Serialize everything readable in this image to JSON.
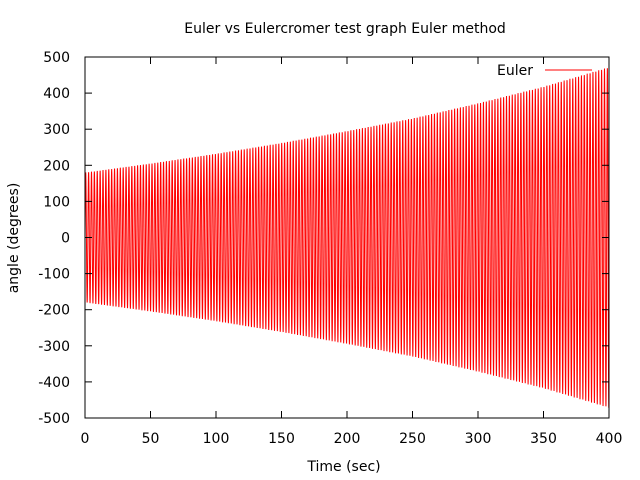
{
  "chart_data": {
    "type": "line",
    "title": "Euler vs Eulercromer test graph Euler method",
    "xlabel": "Time (sec)",
    "ylabel": "angle (degrees)",
    "xlim": [
      0,
      400
    ],
    "ylim": [
      -500,
      500
    ],
    "xticks": [
      0,
      50,
      100,
      150,
      200,
      250,
      300,
      350,
      400
    ],
    "yticks": [
      -500,
      -400,
      -300,
      -200,
      -100,
      0,
      100,
      200,
      300,
      400,
      500
    ],
    "grid": false,
    "legend_position": "top-right",
    "series": [
      {
        "name": "Euler",
        "color": "#ff0000",
        "description": "oscillation with exponentially growing amplitude",
        "envelope": {
          "x": [
            0,
            50,
            100,
            150,
            200,
            250,
            300,
            350,
            400
          ],
          "amplitude": [
            180,
            205,
            232,
            262,
            295,
            330,
            372,
            418,
            472
          ]
        },
        "approx_period": 2.2
      }
    ]
  }
}
